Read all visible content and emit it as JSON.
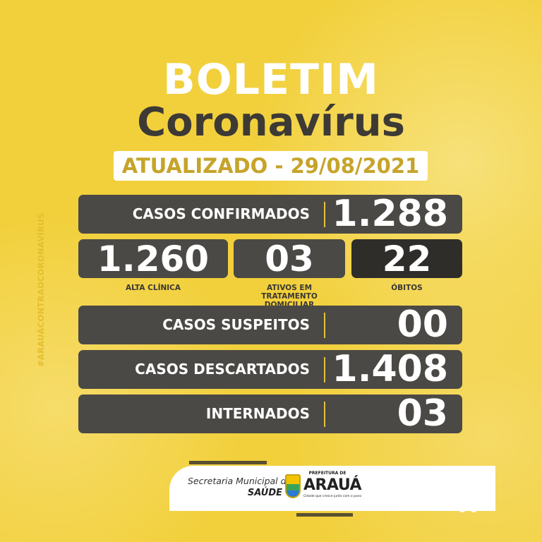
{
  "header": {
    "title": "BOLETIM",
    "subtitle": "Coronavírus",
    "updated": "ATUALIZADO - 29/08/2021"
  },
  "hashtag": "#ARAUÁCONTRAOCORONAVÍRUS",
  "confirmed": {
    "label": "CASOS CONFIRMADOS",
    "value": "1.288"
  },
  "breakdown": [
    {
      "label": "ALTA CLÍNICA",
      "value": "1.260"
    },
    {
      "label": "ATIVOS EM TRATAMENTO DOMICILIAR",
      "value": "03"
    },
    {
      "label": "ÓBITOS",
      "value": "22"
    }
  ],
  "rows": [
    {
      "label": "CASOS SUSPEITOS",
      "value": "00"
    },
    {
      "label": "CASOS DESCARTADOS",
      "value": "1.408"
    },
    {
      "label": "INTERNADOS",
      "value": "03"
    }
  ],
  "footer": {
    "secretaria": "Secretaria Municipal de",
    "saude": "SAÚDE",
    "prefeitura": "PREFEITURA DE",
    "city": "ARAUÁ",
    "slogan": "Cidade que cresce junto com o povo"
  },
  "colors": {
    "background": "#f2d03c",
    "panel": "#4b4945",
    "panel_dark": "#2f2d2a",
    "date_text": "#c6a42a"
  }
}
